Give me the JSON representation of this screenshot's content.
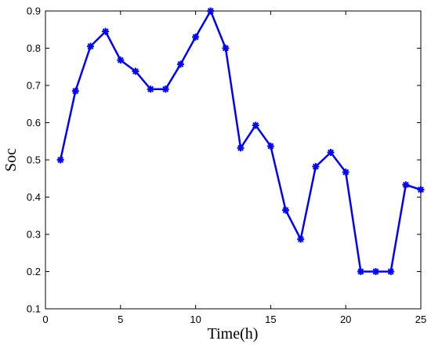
{
  "chart_data": {
    "type": "line",
    "xlabel": "Time(h)",
    "ylabel": "Soc",
    "xlim": [
      0,
      25
    ],
    "ylim": [
      0.1,
      0.9
    ],
    "xticks": [
      0,
      5,
      10,
      15,
      20,
      25
    ],
    "yticks": [
      0.1,
      0.2,
      0.3,
      0.4,
      0.5,
      0.6,
      0.7,
      0.8,
      0.9
    ],
    "grid": false,
    "series": [
      {
        "color": "#0000ff",
        "marker": "star",
        "x": [
          1,
          2,
          3,
          4,
          5,
          6,
          7,
          8,
          9,
          10,
          11,
          12,
          13,
          14,
          15,
          16,
          17,
          18,
          19,
          20,
          21,
          22,
          23,
          24,
          25
        ],
        "y": [
          0.5,
          0.685,
          0.805,
          0.845,
          0.768,
          0.738,
          0.69,
          0.69,
          0.757,
          0.83,
          0.9,
          0.8,
          0.532,
          0.593,
          0.537,
          0.365,
          0.287,
          0.482,
          0.52,
          0.467,
          0.2,
          0.2,
          0.2,
          0.433,
          0.42
        ]
      }
    ]
  }
}
